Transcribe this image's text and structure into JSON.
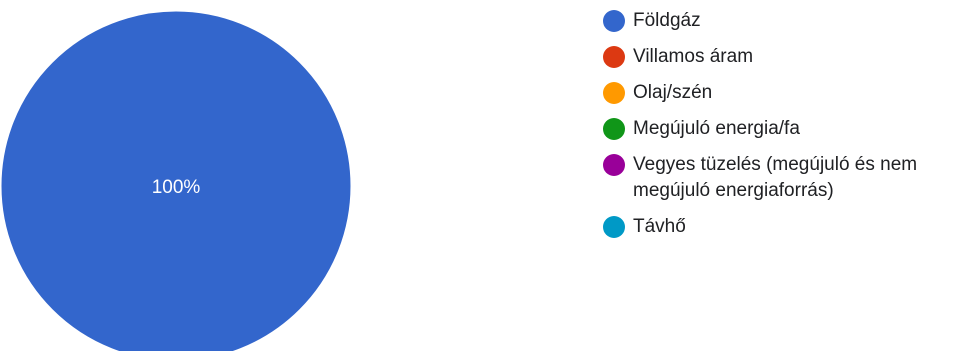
{
  "chart_data": {
    "type": "pie",
    "title": "",
    "categories": [
      "Földgáz",
      "Villamos áram",
      "Olaj/szén",
      "Megújuló energia/fa",
      "Vegyes tüzelés (megújuló és nem megújuló energiaforrás)",
      "Távhő"
    ],
    "values": [
      100,
      0,
      0,
      0,
      0,
      0
    ],
    "colors": [
      "#3366cc",
      "#dc3912",
      "#ff9900",
      "#109618",
      "#990099",
      "#0099c6"
    ],
    "data_labels": [
      "100%",
      "",
      "",
      "",
      "",
      ""
    ],
    "legend_position": "right"
  }
}
